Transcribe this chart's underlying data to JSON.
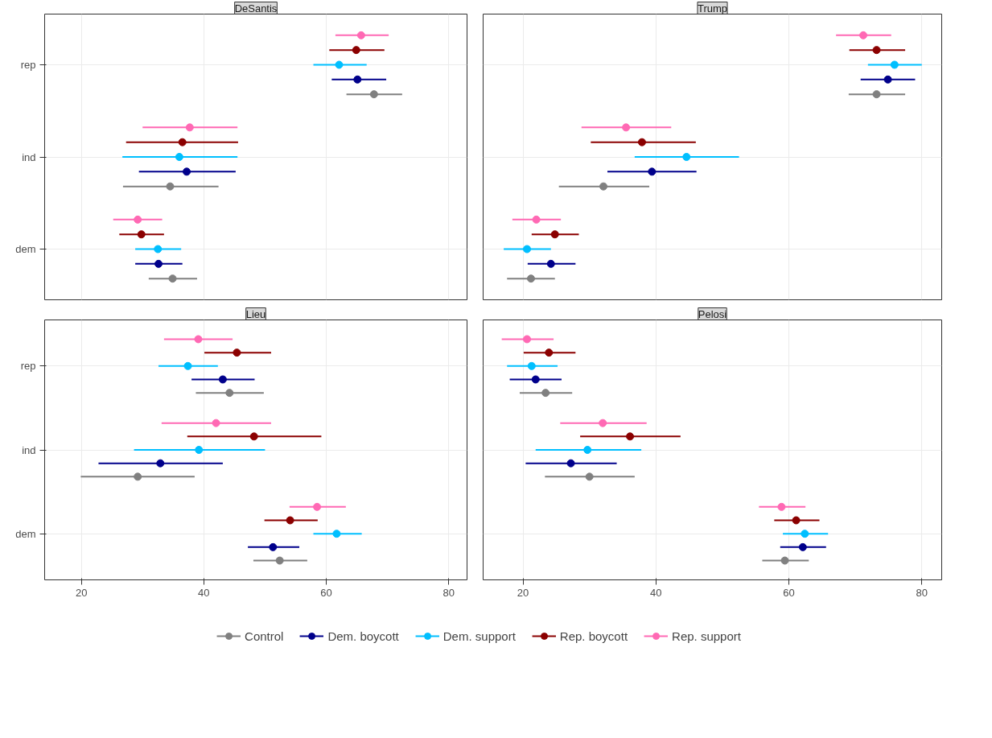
{
  "chart_data": [
    {
      "type": "scatter",
      "orientation": "horizontal",
      "title": "DeSantis",
      "categories": [
        "rep",
        "ind",
        "dem"
      ],
      "xlim": [
        14,
        83
      ],
      "xticks": [
        20,
        40,
        60,
        80
      ],
      "grid": true,
      "marker": "circle",
      "tick_labels": "y",
      "legend": "bottom",
      "series": [
        {
          "name": "Control",
          "color": "#808080",
          "values": [
            67.8,
            34.5,
            34.9
          ],
          "errors": [
            [
              63.3,
              72.4
            ],
            [
              26.8,
              42.4
            ],
            [
              31.0,
              38.9
            ]
          ]
        },
        {
          "name": "Dem. boycott",
          "color": "#00008b",
          "values": [
            65.1,
            37.2,
            32.6
          ],
          "errors": [
            [
              60.9,
              69.8
            ],
            [
              29.4,
              45.2
            ],
            [
              28.8,
              36.5
            ]
          ]
        },
        {
          "name": "Dem. support",
          "color": "#00bfff",
          "values": [
            62.1,
            36.0,
            32.5
          ],
          "errors": [
            [
              57.9,
              66.6
            ],
            [
              26.7,
              45.5
            ],
            [
              28.8,
              36.3
            ]
          ]
        },
        {
          "name": "Rep. boycott",
          "color": "#8b0000",
          "values": [
            64.9,
            36.5,
            29.8
          ],
          "errors": [
            [
              60.5,
              69.5
            ],
            [
              27.3,
              45.6
            ],
            [
              26.2,
              33.5
            ]
          ]
        },
        {
          "name": "Rep. support",
          "color": "#ff69b4",
          "values": [
            65.7,
            37.7,
            29.2
          ],
          "errors": [
            [
              61.5,
              70.2
            ],
            [
              30.0,
              45.5
            ],
            [
              25.2,
              33.2
            ]
          ]
        }
      ]
    },
    {
      "type": "scatter",
      "orientation": "horizontal",
      "title": "Trump",
      "categories": [
        null,
        null,
        null
      ],
      "xlim": [
        14,
        83
      ],
      "xticks": [
        20,
        40,
        60,
        80
      ],
      "grid": true,
      "marker": "circle",
      "tick_labels": false,
      "series": [
        {
          "color": "#808080",
          "values": [
            73.2,
            32.1,
            21.2
          ],
          "errors": [
            [
              69.0,
              77.5
            ],
            [
              25.4,
              39.0
            ],
            [
              17.6,
              24.8
            ]
          ]
        },
        {
          "color": "#00008b",
          "values": [
            74.9,
            39.4,
            24.2
          ],
          "errors": [
            [
              70.8,
              79.0
            ],
            [
              32.7,
              46.1
            ],
            [
              20.7,
              27.9
            ]
          ]
        },
        {
          "color": "#00bfff",
          "values": [
            75.9,
            44.6,
            20.6
          ],
          "errors": [
            [
              71.9,
              80.0
            ],
            [
              36.8,
              52.5
            ],
            [
              17.1,
              24.2
            ]
          ]
        },
        {
          "color": "#8b0000",
          "values": [
            73.2,
            37.9,
            24.8
          ],
          "errors": [
            [
              69.1,
              77.5
            ],
            [
              30.2,
              46.0
            ],
            [
              21.3,
              28.4
            ]
          ]
        },
        {
          "color": "#ff69b4",
          "values": [
            71.2,
            35.5,
            22.0
          ],
          "errors": [
            [
              67.1,
              75.4
            ],
            [
              28.8,
              42.3
            ],
            [
              18.4,
              25.7
            ]
          ]
        }
      ]
    },
    {
      "type": "scatter",
      "orientation": "horizontal",
      "title": "Lieu",
      "categories": [
        "rep",
        "ind",
        "dem"
      ],
      "xlim": [
        14,
        83
      ],
      "xticks": [
        20,
        40,
        60,
        80
      ],
      "grid": true,
      "marker": "circle",
      "series": [
        {
          "color": "#808080",
          "values": [
            44.2,
            29.2,
            52.4
          ],
          "errors": [
            [
              38.7,
              49.8
            ],
            [
              19.9,
              38.5
            ],
            [
              48.1,
              56.9
            ]
          ]
        },
        {
          "color": "#00008b",
          "values": [
            43.1,
            32.9,
            51.3
          ],
          "errors": [
            [
              38.0,
              48.3
            ],
            [
              22.8,
              43.1
            ],
            [
              47.2,
              55.6
            ]
          ]
        },
        {
          "color": "#00bfff",
          "values": [
            37.4,
            39.2,
            61.7
          ],
          "errors": [
            [
              32.6,
              42.3
            ],
            [
              28.6,
              50.0
            ],
            [
              57.9,
              65.8
            ]
          ]
        },
        {
          "color": "#8b0000",
          "values": [
            45.4,
            48.2,
            54.1
          ],
          "errors": [
            [
              40.1,
              51.0
            ],
            [
              37.3,
              59.2
            ],
            [
              49.9,
              58.6
            ]
          ]
        },
        {
          "color": "#ff69b4",
          "values": [
            39.1,
            42.0,
            58.5
          ],
          "errors": [
            [
              33.5,
              44.7
            ],
            [
              33.1,
              51.0
            ],
            [
              54.0,
              63.2
            ]
          ]
        }
      ]
    },
    {
      "type": "scatter",
      "orientation": "horizontal",
      "title": "Pelosi",
      "categories": [
        null,
        null,
        null
      ],
      "xlim": [
        14,
        83
      ],
      "xticks": [
        20,
        40,
        60,
        80
      ],
      "grid": true,
      "marker": "circle",
      "tick_labels": "x",
      "series": [
        {
          "color": "#808080",
          "values": [
            23.4,
            30.0,
            59.4
          ],
          "errors": [
            [
              19.5,
              27.4
            ],
            [
              23.3,
              36.8
            ],
            [
              56.0,
              63.0
            ]
          ]
        },
        {
          "color": "#00008b",
          "values": [
            21.9,
            27.2,
            62.1
          ],
          "errors": [
            [
              18.0,
              25.8
            ],
            [
              20.4,
              34.1
            ],
            [
              58.7,
              65.6
            ]
          ]
        },
        {
          "color": "#00bfff",
          "values": [
            21.3,
            29.7,
            62.4
          ],
          "errors": [
            [
              17.6,
              25.2
            ],
            [
              21.9,
              37.8
            ],
            [
              59.1,
              65.9
            ]
          ]
        },
        {
          "color": "#8b0000",
          "values": [
            23.9,
            36.1,
            61.1
          ],
          "errors": [
            [
              20.1,
              27.9
            ],
            [
              28.6,
              43.7
            ],
            [
              57.8,
              64.6
            ]
          ]
        },
        {
          "color": "#ff69b4",
          "values": [
            20.6,
            32.0,
            58.9
          ],
          "errors": [
            [
              16.8,
              24.6
            ],
            [
              25.6,
              38.6
            ],
            [
              55.5,
              62.5
            ]
          ]
        }
      ]
    }
  ]
}
